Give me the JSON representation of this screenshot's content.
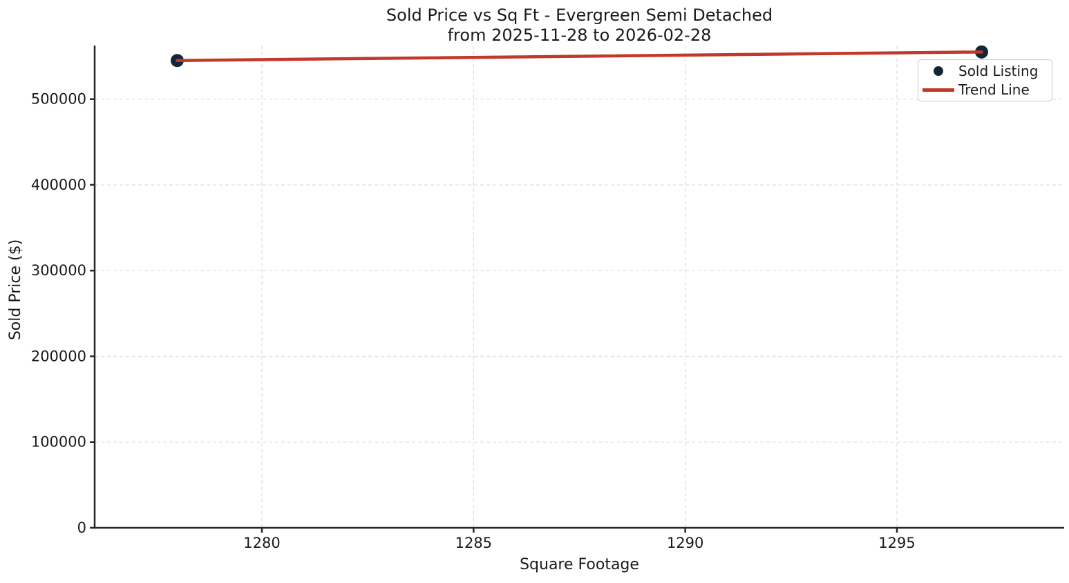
{
  "chart_data": {
    "type": "scatter",
    "title": "Sold Price vs Sq Ft - Evergreen Semi Detached",
    "subtitle": "from 2025-11-28 to 2026-02-28",
    "xlabel": "Square Footage",
    "ylabel": "Sold Price ($)",
    "xlim": [
      1276.05,
      1298.95
    ],
    "ylim": [
      0,
      562500
    ],
    "xticks": [
      1280,
      1285,
      1290,
      1295
    ],
    "yticks": [
      0,
      100000,
      200000,
      300000,
      400000,
      500000
    ],
    "grid": true,
    "grid_style": "dashed",
    "legend_position": "upper right",
    "colors": {
      "scatter_point": "#12263a",
      "trend_line": "#c0392b",
      "text": "#1a1a1a",
      "grid": "#dcdcdc",
      "spine": "#262626",
      "background": "#ffffff"
    },
    "series": [
      {
        "name": "Sold Listing",
        "type": "scatter",
        "color": "#12263a",
        "points": [
          [
            1278,
            545000
          ],
          [
            1297,
            555000
          ]
        ]
      },
      {
        "name": "Trend Line",
        "type": "line",
        "color": "#c0392b",
        "points": [
          [
            1278,
            545000
          ],
          [
            1297,
            555000
          ]
        ]
      }
    ]
  }
}
